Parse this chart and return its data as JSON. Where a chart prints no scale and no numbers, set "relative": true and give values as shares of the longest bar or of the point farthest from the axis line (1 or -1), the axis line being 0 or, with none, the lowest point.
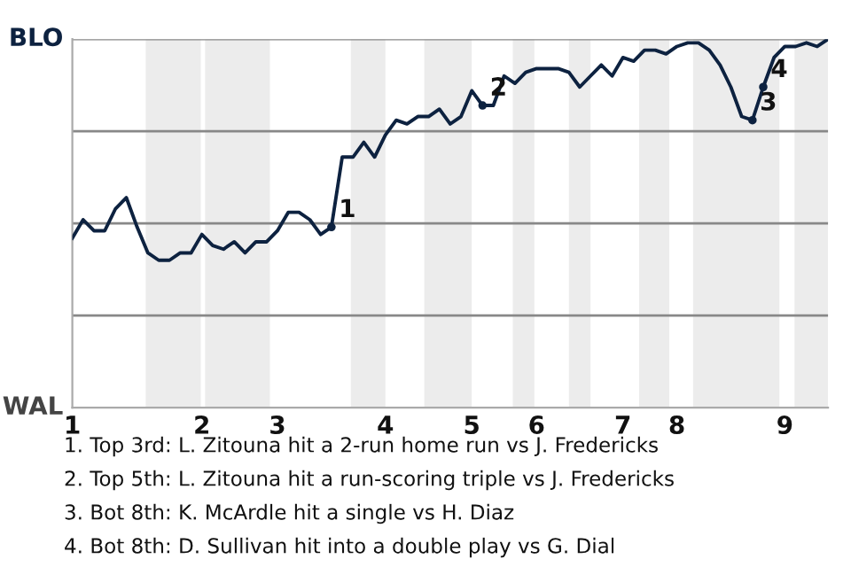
{
  "chart_data": {
    "type": "line",
    "relative": true,
    "categories": [
      "1",
      null,
      null,
      null,
      null,
      null,
      null,
      null,
      null,
      null,
      null,
      null,
      "2",
      null,
      null,
      null,
      null,
      null,
      null,
      "3",
      null,
      null,
      null,
      null,
      null,
      null,
      null,
      null,
      null,
      "4",
      null,
      null,
      null,
      null,
      null,
      null,
      null,
      "5",
      null,
      null,
      null,
      null,
      null,
      "6",
      null,
      null,
      null,
      null,
      null,
      null,
      null,
      "7",
      null,
      null,
      null,
      null,
      "8",
      null,
      null,
      null,
      null,
      null,
      null,
      null,
      null,
      null,
      "9",
      null,
      null,
      null,
      null
    ],
    "series": [
      {
        "color": "#0d2240",
        "values": [
          0.46,
          0.51,
          0.48,
          0.48,
          0.54,
          0.57,
          0.49,
          0.42,
          0.4,
          0.4,
          0.42,
          0.42,
          0.47,
          0.44,
          0.43,
          0.45,
          0.42,
          0.45,
          0.45,
          0.48,
          0.53,
          0.53,
          0.51,
          0.47,
          0.49,
          0.68,
          0.68,
          0.72,
          0.68,
          0.74,
          0.78,
          0.77,
          0.79,
          0.79,
          0.81,
          0.77,
          0.79,
          0.86,
          0.82,
          0.82,
          0.9,
          0.88,
          0.91,
          0.92,
          0.92,
          0.92,
          0.91,
          0.87,
          0.9,
          0.93,
          0.9,
          0.95,
          0.94,
          0.97,
          0.97,
          0.96,
          0.98,
          0.99,
          0.99,
          0.97,
          0.93,
          0.87,
          0.79,
          0.78,
          0.87,
          0.95,
          0.98,
          0.98,
          0.99,
          0.98,
          1
        ]
      },
      {
        "type": "scatter",
        "name": "1",
        "color": "#0d2240",
        "values": [
          null,
          null,
          null,
          null,
          null,
          null,
          null,
          null,
          null,
          null,
          null,
          null,
          null,
          null,
          null,
          null,
          null,
          null,
          null,
          null,
          null,
          null,
          null,
          null,
          0.49,
          null,
          null,
          null,
          null,
          null,
          null,
          null,
          null,
          null,
          null,
          null,
          null,
          null,
          null,
          null,
          null,
          null,
          null,
          null,
          null,
          null,
          null,
          null,
          null,
          null,
          null,
          null,
          null,
          null,
          null,
          null,
          null,
          null,
          null,
          null,
          null,
          null,
          null,
          null,
          null,
          null,
          null,
          null,
          null,
          null,
          null
        ]
      },
      {
        "type": "scatter",
        "name": "2",
        "color": "#0d2240",
        "values": [
          null,
          null,
          null,
          null,
          null,
          null,
          null,
          null,
          null,
          null,
          null,
          null,
          null,
          null,
          null,
          null,
          null,
          null,
          null,
          null,
          null,
          null,
          null,
          null,
          null,
          null,
          null,
          null,
          null,
          null,
          null,
          null,
          null,
          null,
          null,
          null,
          null,
          null,
          0.82,
          null,
          null,
          null,
          null,
          null,
          null,
          null,
          null,
          null,
          null,
          null,
          null,
          null,
          null,
          null,
          null,
          null,
          null,
          null,
          null,
          null,
          null,
          null,
          null,
          null,
          null,
          null,
          null,
          null,
          null,
          null,
          null
        ]
      },
      {
        "type": "scatter",
        "name": "3",
        "color": "#0d2240",
        "values": [
          null,
          null,
          null,
          null,
          null,
          null,
          null,
          null,
          null,
          null,
          null,
          null,
          null,
          null,
          null,
          null,
          null,
          null,
          null,
          null,
          null,
          null,
          null,
          null,
          null,
          null,
          null,
          null,
          null,
          null,
          null,
          null,
          null,
          null,
          null,
          null,
          null,
          null,
          null,
          null,
          null,
          null,
          null,
          null,
          null,
          null,
          null,
          null,
          null,
          null,
          null,
          null,
          null,
          null,
          null,
          null,
          null,
          null,
          null,
          null,
          null,
          null,
          null,
          0.78,
          null,
          null,
          null,
          null,
          null,
          null,
          null
        ]
      },
      {
        "type": "scatter",
        "name": "4",
        "color": "#0d2240",
        "values": [
          null,
          null,
          null,
          null,
          null,
          null,
          null,
          null,
          null,
          null,
          null,
          null,
          null,
          null,
          null,
          null,
          null,
          null,
          null,
          null,
          null,
          null,
          null,
          null,
          null,
          null,
          null,
          null,
          null,
          null,
          null,
          null,
          null,
          null,
          null,
          null,
          null,
          null,
          null,
          null,
          null,
          null,
          null,
          null,
          null,
          null,
          null,
          null,
          null,
          null,
          null,
          null,
          null,
          null,
          null,
          null,
          null,
          null,
          null,
          null,
          null,
          null,
          null,
          null,
          0.87,
          null,
          null,
          null,
          null,
          null,
          null
        ]
      }
    ],
    "grid": "y",
    "line_style": "solid",
    "legend": false,
    "annotations": [
      "BLO",
      "WAL",
      "1. Top 3rd: L. Zitouna hit a 2-run home run vs J. Fredericks",
      "2. Top 5th: L. Zitouna hit a run-scoring triple vs J. Fredericks",
      "3. Bot 8th: K. McArdle hit a single vs H. Diaz",
      "4. Bot 8th: D. Sullivan hit into a double play vs G. Dial"
    ]
  }
}
